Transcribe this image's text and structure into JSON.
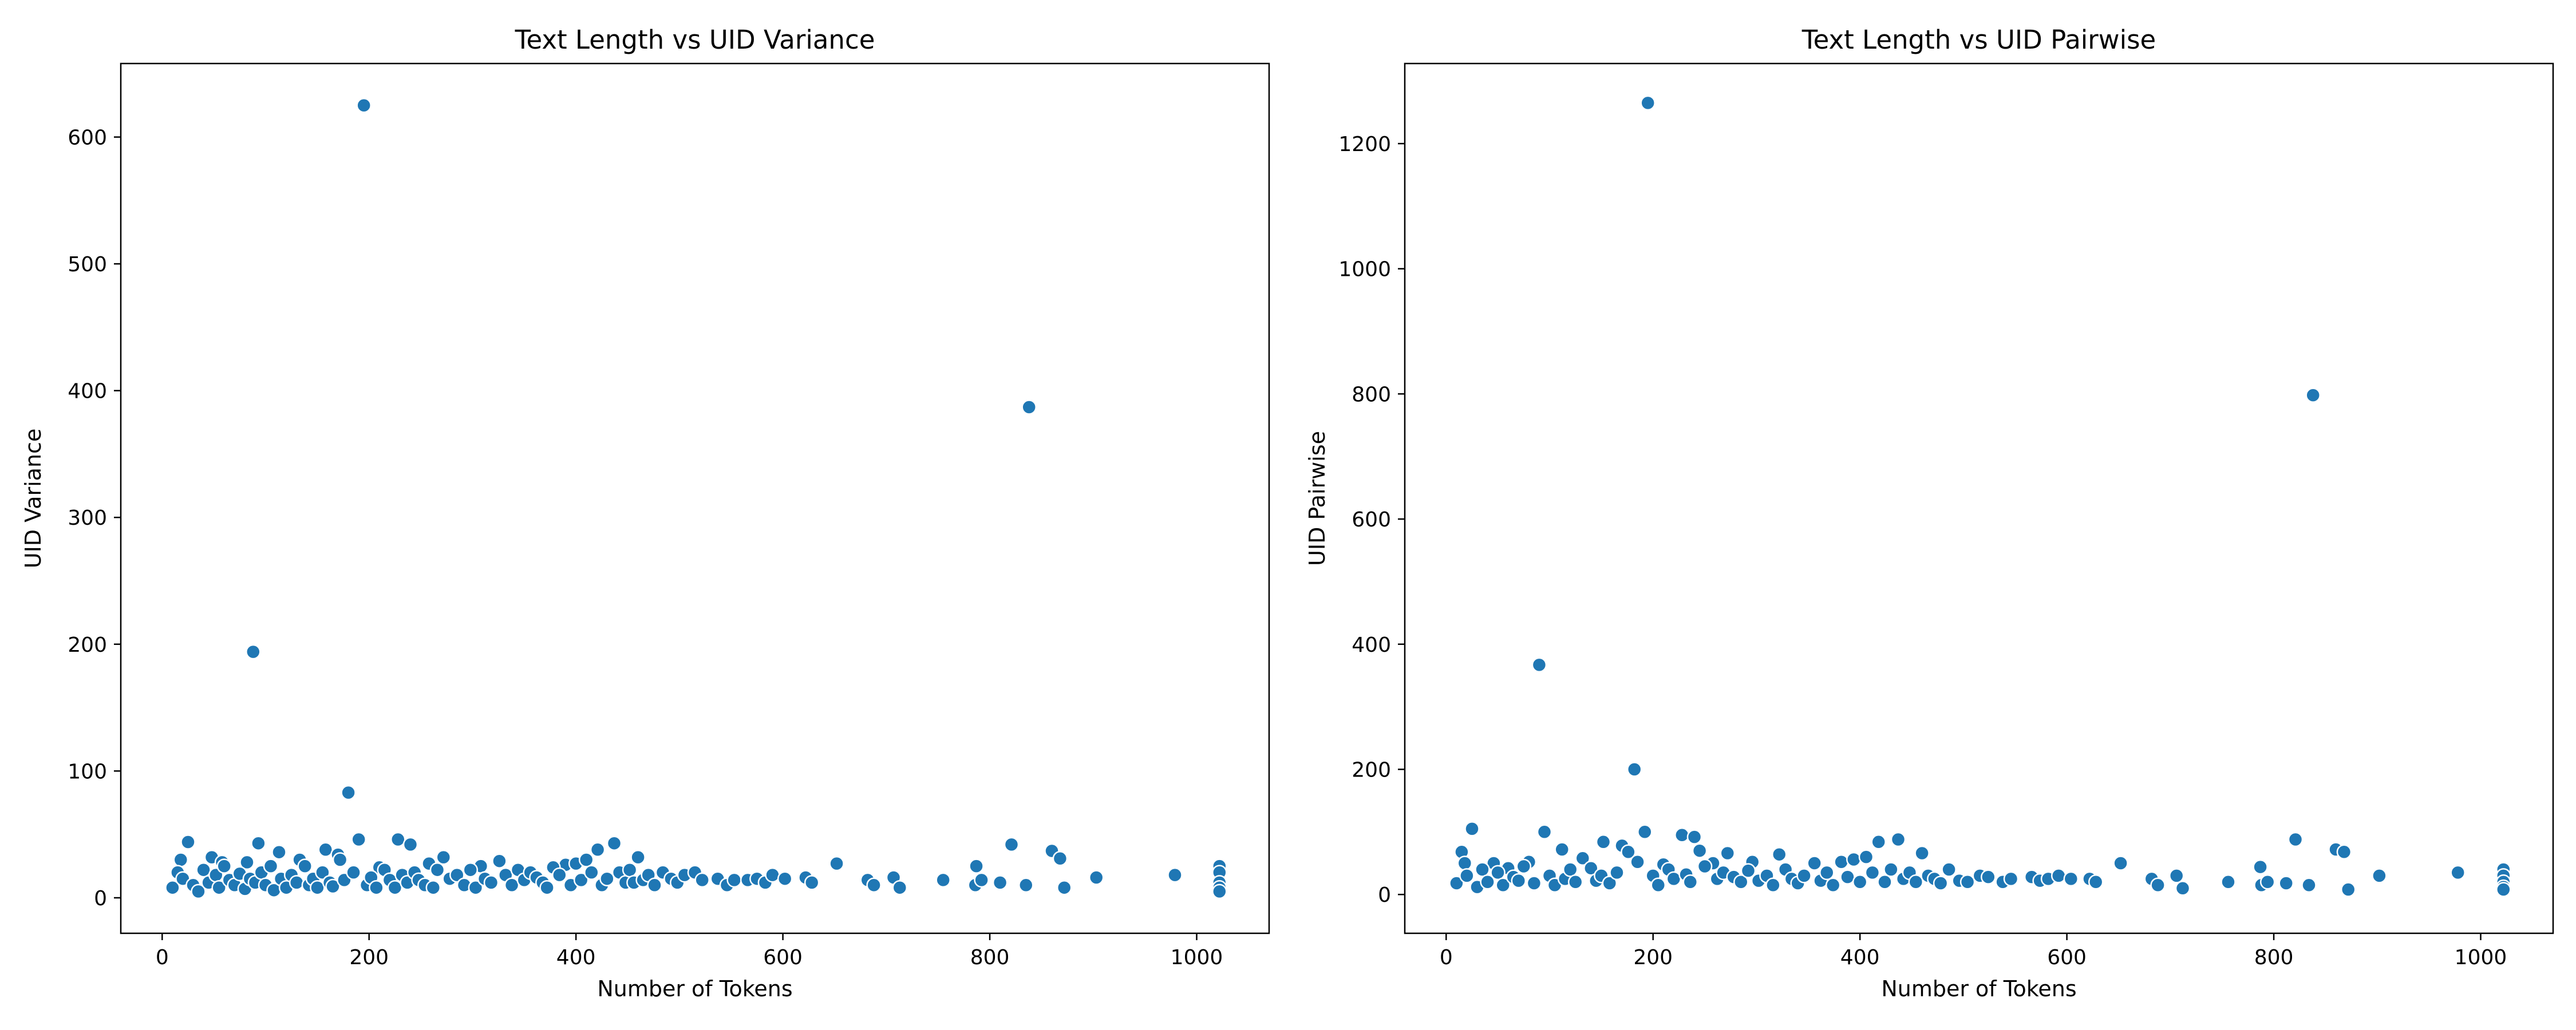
{
  "chart_data": [
    {
      "type": "scatter",
      "title": "Text Length vs UID Variance",
      "xlabel": "Number of Tokens",
      "ylabel": "UID Variance",
      "xlim": [
        -40,
        1070
      ],
      "ylim": [
        -28,
        658
      ],
      "xticks": [
        0,
        200,
        400,
        600,
        800,
        1000
      ],
      "yticks": [
        0,
        100,
        200,
        300,
        400,
        500,
        600
      ],
      "grid": false,
      "marker_color": "#1f77b4",
      "points": [
        [
          195,
          625
        ],
        [
          838,
          387
        ],
        [
          88,
          194
        ],
        [
          180,
          83
        ],
        [
          25,
          44
        ],
        [
          93,
          43
        ],
        [
          190,
          46
        ],
        [
          228,
          46
        ],
        [
          240,
          42
        ],
        [
          437,
          43
        ],
        [
          460,
          32
        ],
        [
          821,
          42
        ],
        [
          860,
          37
        ],
        [
          868,
          31
        ],
        [
          113,
          36
        ],
        [
          158,
          38
        ],
        [
          170,
          34
        ],
        [
          258,
          27
        ],
        [
          272,
          32
        ],
        [
          48,
          32
        ],
        [
          58,
          28
        ],
        [
          18,
          30
        ],
        [
          82,
          28
        ],
        [
          133,
          30
        ],
        [
          210,
          24
        ],
        [
          308,
          25
        ],
        [
          326,
          29
        ],
        [
          390,
          26
        ],
        [
          400,
          27
        ],
        [
          410,
          30
        ],
        [
          421,
          38
        ],
        [
          652,
          27
        ],
        [
          787,
          25
        ],
        [
          10,
          8
        ],
        [
          15,
          20
        ],
        [
          20,
          15
        ],
        [
          30,
          10
        ],
        [
          35,
          5
        ],
        [
          40,
          22
        ],
        [
          45,
          12
        ],
        [
          52,
          18
        ],
        [
          55,
          8
        ],
        [
          60,
          25
        ],
        [
          65,
          14
        ],
        [
          70,
          10
        ],
        [
          75,
          19
        ],
        [
          80,
          7
        ],
        [
          85,
          15
        ],
        [
          90,
          12
        ],
        [
          96,
          20
        ],
        [
          100,
          10
        ],
        [
          105,
          25
        ],
        [
          108,
          6
        ],
        [
          115,
          15
        ],
        [
          120,
          8
        ],
        [
          125,
          18
        ],
        [
          130,
          12
        ],
        [
          138,
          25
        ],
        [
          142,
          10
        ],
        [
          146,
          15
        ],
        [
          150,
          8
        ],
        [
          155,
          20
        ],
        [
          162,
          12
        ],
        [
          165,
          9
        ],
        [
          172,
          30
        ],
        [
          176,
          14
        ],
        [
          185,
          20
        ],
        [
          198,
          10
        ],
        [
          202,
          16
        ],
        [
          207,
          8
        ],
        [
          215,
          22
        ],
        [
          220,
          14
        ],
        [
          225,
          8
        ],
        [
          232,
          18
        ],
        [
          237,
          12
        ],
        [
          244,
          20
        ],
        [
          248,
          14
        ],
        [
          254,
          10
        ],
        [
          262,
          8
        ],
        [
          266,
          22
        ],
        [
          278,
          15
        ],
        [
          285,
          18
        ],
        [
          292,
          10
        ],
        [
          298,
          22
        ],
        [
          303,
          8
        ],
        [
          312,
          15
        ],
        [
          318,
          12
        ],
        [
          332,
          18
        ],
        [
          338,
          10
        ],
        [
          344,
          22
        ],
        [
          350,
          14
        ],
        [
          356,
          20
        ],
        [
          362,
          16
        ],
        [
          368,
          12
        ],
        [
          372,
          8
        ],
        [
          378,
          24
        ],
        [
          384,
          18
        ],
        [
          395,
          10
        ],
        [
          405,
          14
        ],
        [
          415,
          20
        ],
        [
          425,
          10
        ],
        [
          430,
          15
        ],
        [
          442,
          20
        ],
        [
          448,
          12
        ],
        [
          452,
          22
        ],
        [
          456,
          12
        ],
        [
          465,
          14
        ],
        [
          470,
          18
        ],
        [
          476,
          10
        ],
        [
          484,
          20
        ],
        [
          492,
          15
        ],
        [
          498,
          12
        ],
        [
          505,
          18
        ],
        [
          515,
          20
        ],
        [
          522,
          14
        ],
        [
          537,
          15
        ],
        [
          546,
          10
        ],
        [
          553,
          14
        ],
        [
          566,
          14
        ],
        [
          575,
          15
        ],
        [
          583,
          12
        ],
        [
          590,
          18
        ],
        [
          602,
          15
        ],
        [
          622,
          16
        ],
        [
          628,
          12
        ],
        [
          682,
          14
        ],
        [
          688,
          10
        ],
        [
          707,
          16
        ],
        [
          713,
          8
        ],
        [
          755,
          14
        ],
        [
          786,
          10
        ],
        [
          792,
          14
        ],
        [
          810,
          12
        ],
        [
          835,
          10
        ],
        [
          872,
          8
        ],
        [
          903,
          16
        ],
        [
          979,
          18
        ],
        [
          1022,
          25
        ],
        [
          1022,
          20
        ],
        [
          1022,
          12
        ],
        [
          1022,
          8
        ],
        [
          1022,
          5
        ]
      ]
    },
    {
      "type": "scatter",
      "title": "Text Length vs UID Pairwise",
      "xlabel": "Number of Tokens",
      "ylabel": "UID Pairwise",
      "xlim": [
        -40,
        1070
      ],
      "ylim": [
        -62,
        1328
      ],
      "xticks": [
        0,
        200,
        400,
        600,
        800,
        1000
      ],
      "yticks": [
        0,
        200,
        400,
        600,
        800,
        1000,
        1200
      ],
      "grid": false,
      "marker_color": "#1f77b4",
      "points": [
        [
          195,
          1265
        ],
        [
          838,
          798
        ],
        [
          90,
          367
        ],
        [
          182,
          200
        ],
        [
          25,
          105
        ],
        [
          95,
          100
        ],
        [
          192,
          100
        ],
        [
          228,
          95
        ],
        [
          240,
          92
        ],
        [
          437,
          88
        ],
        [
          418,
          84
        ],
        [
          821,
          88
        ],
        [
          152,
          84
        ],
        [
          170,
          78
        ],
        [
          176,
          68
        ],
        [
          860,
          72
        ],
        [
          868,
          68
        ],
        [
          460,
          66
        ],
        [
          272,
          66
        ],
        [
          322,
          64
        ],
        [
          15,
          68
        ],
        [
          18,
          50
        ],
        [
          112,
          72
        ],
        [
          132,
          58
        ],
        [
          46,
          50
        ],
        [
          60,
          42
        ],
        [
          80,
          52
        ],
        [
          185,
          52
        ],
        [
          210,
          48
        ],
        [
          245,
          70
        ],
        [
          258,
          50
        ],
        [
          296,
          52
        ],
        [
          356,
          50
        ],
        [
          382,
          52
        ],
        [
          394,
          56
        ],
        [
          406,
          60
        ],
        [
          652,
          50
        ],
        [
          787,
          44
        ],
        [
          10,
          18
        ],
        [
          20,
          30
        ],
        [
          30,
          12
        ],
        [
          35,
          40
        ],
        [
          40,
          20
        ],
        [
          50,
          35
        ],
        [
          55,
          15
        ],
        [
          65,
          28
        ],
        [
          70,
          22
        ],
        [
          75,
          45
        ],
        [
          85,
          18
        ],
        [
          100,
          30
        ],
        [
          105,
          15
        ],
        [
          115,
          25
        ],
        [
          120,
          40
        ],
        [
          125,
          20
        ],
        [
          140,
          42
        ],
        [
          145,
          22
        ],
        [
          150,
          30
        ],
        [
          158,
          18
        ],
        [
          165,
          35
        ],
        [
          200,
          30
        ],
        [
          205,
          15
        ],
        [
          215,
          40
        ],
        [
          220,
          25
        ],
        [
          232,
          32
        ],
        [
          236,
          20
        ],
        [
          250,
          45
        ],
        [
          262,
          25
        ],
        [
          268,
          35
        ],
        [
          278,
          28
        ],
        [
          285,
          20
        ],
        [
          292,
          38
        ],
        [
          302,
          22
        ],
        [
          310,
          30
        ],
        [
          316,
          15
        ],
        [
          328,
          40
        ],
        [
          334,
          25
        ],
        [
          340,
          18
        ],
        [
          346,
          30
        ],
        [
          362,
          22
        ],
        [
          368,
          35
        ],
        [
          374,
          15
        ],
        [
          388,
          28
        ],
        [
          400,
          20
        ],
        [
          412,
          35
        ],
        [
          424,
          20
        ],
        [
          430,
          40
        ],
        [
          442,
          25
        ],
        [
          448,
          35
        ],
        [
          454,
          20
        ],
        [
          466,
          30
        ],
        [
          472,
          25
        ],
        [
          478,
          18
        ],
        [
          486,
          40
        ],
        [
          496,
          22
        ],
        [
          504,
          20
        ],
        [
          516,
          30
        ],
        [
          524,
          28
        ],
        [
          538,
          20
        ],
        [
          546,
          25
        ],
        [
          566,
          28
        ],
        [
          574,
          22
        ],
        [
          582,
          25
        ],
        [
          592,
          30
        ],
        [
          604,
          25
        ],
        [
          622,
          25
        ],
        [
          628,
          20
        ],
        [
          682,
          25
        ],
        [
          688,
          15
        ],
        [
          706,
          30
        ],
        [
          712,
          10
        ],
        [
          756,
          20
        ],
        [
          788,
          15
        ],
        [
          794,
          20
        ],
        [
          812,
          18
        ],
        [
          834,
          15
        ],
        [
          872,
          8
        ],
        [
          902,
          30
        ],
        [
          978,
          35
        ],
        [
          1022,
          40
        ],
        [
          1022,
          30
        ],
        [
          1022,
          20
        ],
        [
          1022,
          12
        ],
        [
          1022,
          8
        ]
      ]
    }
  ]
}
